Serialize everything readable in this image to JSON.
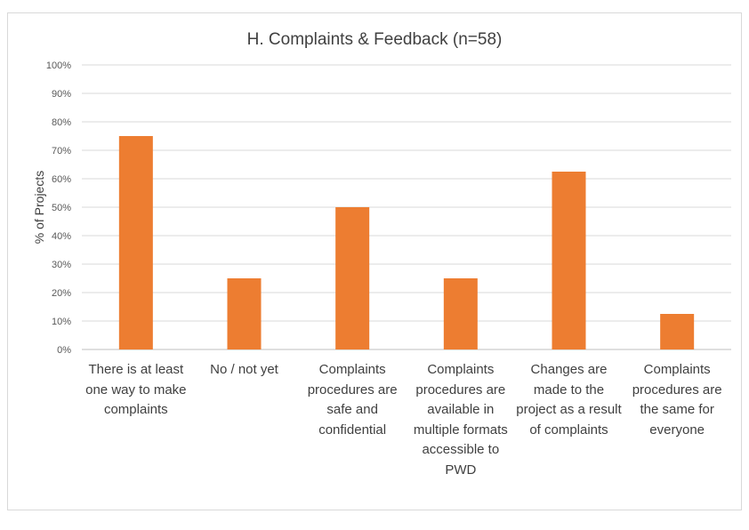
{
  "chart_data": {
    "type": "bar",
    "title": "H.  Complaints & Feedback (n=58)",
    "xlabel": "",
    "ylabel": "% of Projects",
    "ylim": [
      0,
      100
    ],
    "yticks": [
      "0%",
      "10%",
      "20%",
      "30%",
      "40%",
      "50%",
      "60%",
      "70%",
      "80%",
      "90%",
      "100%"
    ],
    "grid": true,
    "bar_color": "#ED7D31",
    "categories": [
      "There is at least one way to make complaints",
      "No / not yet",
      "Complaints procedures are safe and confidential",
      "Complaints procedures are available in multiple formats accessible to PWD",
      "Changes are made to the project as a result of complaints",
      "Complaints procedures are the same for everyone"
    ],
    "values": [
      75,
      25,
      50,
      25,
      62.5,
      12.5
    ]
  }
}
